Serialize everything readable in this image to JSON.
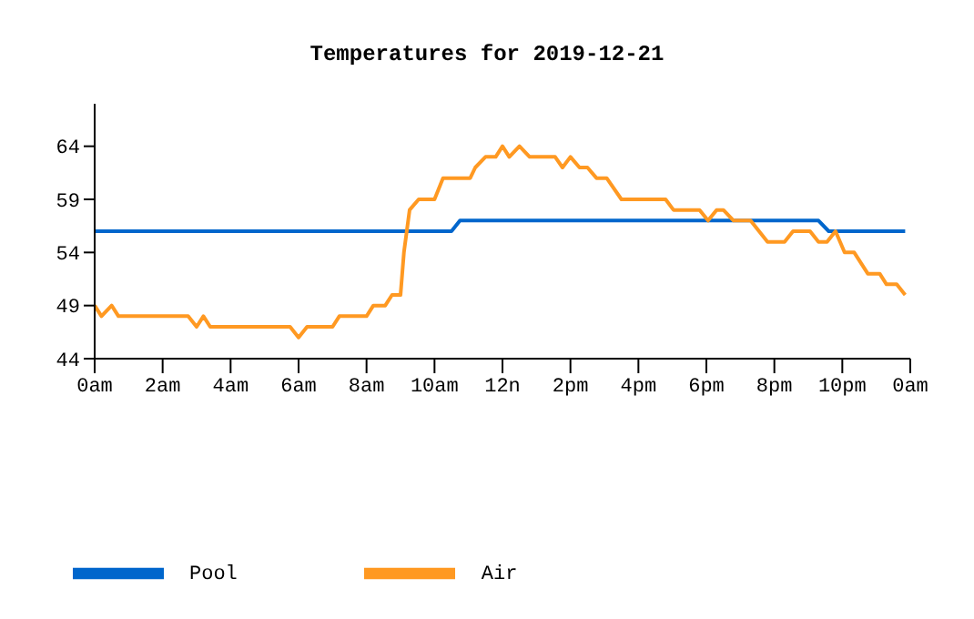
{
  "chart_data": {
    "type": "line",
    "title": "Temperatures for 2019-12-21",
    "xlim": [
      "2019-12-21T00:00",
      "2019-12-22T00:00"
    ],
    "xticks": [
      {
        "value": "2019-12-21T00:00",
        "label": "0am"
      },
      {
        "value": "2019-12-21T02:00",
        "label": "2am"
      },
      {
        "value": "2019-12-21T04:00",
        "label": "4am"
      },
      {
        "value": "2019-12-21T06:00",
        "label": "6am"
      },
      {
        "value": "2019-12-21T08:00",
        "label": "8am"
      },
      {
        "value": "2019-12-21T10:00",
        "label": "10am"
      },
      {
        "value": "2019-12-21T12:00",
        "label": "12n"
      },
      {
        "value": "2019-12-21T14:00",
        "label": "2pm"
      },
      {
        "value": "2019-12-21T16:00",
        "label": "4pm"
      },
      {
        "value": "2019-12-21T18:00",
        "label": "6pm"
      },
      {
        "value": "2019-12-21T20:00",
        "label": "8pm"
      },
      {
        "value": "2019-12-21T22:00",
        "label": "10pm"
      },
      {
        "value": "2019-12-22T00:00",
        "label": "0am"
      }
    ],
    "ylim": [
      44,
      68
    ],
    "yticks": [
      44,
      49,
      54,
      59,
      64
    ],
    "grid": false,
    "legend": "bottom left",
    "marker": "none",
    "line_style": "solid",
    "series": [
      {
        "name": "Pool",
        "color": "#0066cc",
        "x": [
          "2019-12-21T00:00",
          "2019-12-21T10:30",
          "2019-12-21T10:45",
          "2019-12-21T21:18",
          "2019-12-21T21:36",
          "2019-12-21T23:51"
        ],
        "values": [
          56,
          56,
          57,
          57,
          56,
          56
        ]
      },
      {
        "name": "Air",
        "color": "#ff9922",
        "x": [
          "2019-12-21T00:00",
          "2019-12-21T00:12",
          "2019-12-21T00:30",
          "2019-12-21T00:42",
          "2019-12-21T02:45",
          "2019-12-21T03:00",
          "2019-12-21T03:12",
          "2019-12-21T03:24",
          "2019-12-21T05:45",
          "2019-12-21T06:00",
          "2019-12-21T06:15",
          "2019-12-21T07:00",
          "2019-12-21T07:12",
          "2019-12-21T08:00",
          "2019-12-21T08:12",
          "2019-12-21T08:33",
          "2019-12-21T08:45",
          "2019-12-21T09:00",
          "2019-12-21T09:06",
          "2019-12-21T09:16",
          "2019-12-21T09:32",
          "2019-12-21T10:00",
          "2019-12-21T10:15",
          "2019-12-21T11:03",
          "2019-12-21T11:12",
          "2019-12-21T11:30",
          "2019-12-21T11:48",
          "2019-12-21T12:00",
          "2019-12-21T12:12",
          "2019-12-21T12:30",
          "2019-12-21T12:48",
          "2019-12-21T13:33",
          "2019-12-21T13:46",
          "2019-12-21T14:00",
          "2019-12-21T14:16",
          "2019-12-21T14:30",
          "2019-12-21T14:46",
          "2019-12-21T15:04",
          "2019-12-21T15:30",
          "2019-12-21T16:48",
          "2019-12-21T17:02",
          "2019-12-21T17:48",
          "2019-12-21T18:03",
          "2019-12-21T18:18",
          "2019-12-21T18:30",
          "2019-12-21T18:48",
          "2019-12-21T19:18",
          "2019-12-21T19:48",
          "2019-12-21T20:18",
          "2019-12-21T20:33",
          "2019-12-21T21:03",
          "2019-12-21T21:18",
          "2019-12-21T21:33",
          "2019-12-21T21:48",
          "2019-12-21T22:04",
          "2019-12-21T22:21",
          "2019-12-21T22:45",
          "2019-12-21T23:06",
          "2019-12-21T23:18",
          "2019-12-21T23:36",
          "2019-12-21T23:51"
        ],
        "values": [
          49,
          48,
          49,
          48,
          48,
          47,
          48,
          47,
          47,
          46,
          47,
          47,
          48,
          48,
          49,
          49,
          50,
          50,
          54,
          58,
          59,
          59,
          61,
          61,
          62,
          63,
          63,
          64,
          63,
          64,
          63,
          63,
          62,
          63,
          62,
          62,
          61,
          61,
          59,
          59,
          58,
          58,
          57,
          58,
          58,
          57,
          57,
          55,
          55,
          56,
          56,
          55,
          55,
          56,
          54,
          54,
          52,
          52,
          51,
          51,
          50
        ]
      }
    ]
  }
}
